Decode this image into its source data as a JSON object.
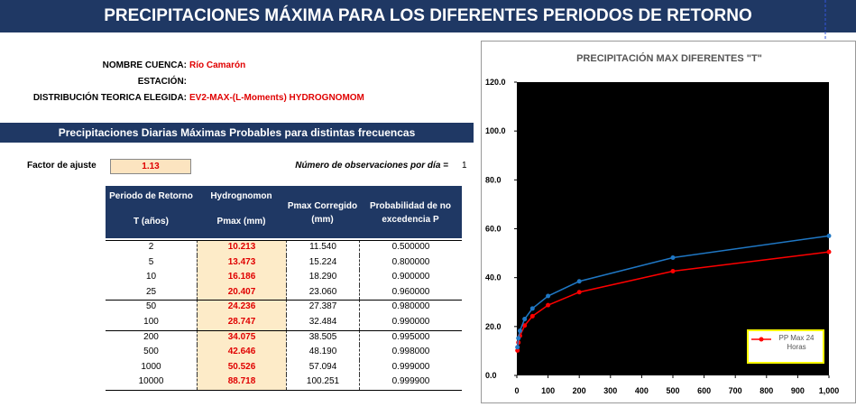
{
  "title": "PRECIPITACIONES MÁXIMA PARA LOS DIFERENTES PERIODOS DE RETORNO",
  "info": {
    "cuenca_label": "NOMBRE CUENCA:",
    "cuenca_value": "Río Camarón",
    "estacion_label": "ESTACIÓN:",
    "distribucion_label": "DISTRIBUCIÓN TEORICA ELEGIDA:",
    "distribucion_value": "EV2-MAX-(L-Moments) HYDROGNOMOM"
  },
  "section_title": "Precipitaciones Diarias Máximas Probables para distintas frecuencas",
  "factor": {
    "label": "Factor de ajuste",
    "value": "1.13"
  },
  "observaciones": {
    "label": "Número de observaciones por día =",
    "value": "1"
  },
  "table": {
    "columns": [
      [
        "Periodo de Retorno",
        "T (años)"
      ],
      [
        "Hydrognomon",
        "Pmax (mm)"
      ],
      [
        "Pmax Corregido",
        "(mm)"
      ],
      [
        "Probabilidad de no",
        "excedencia P"
      ]
    ],
    "rows": [
      [
        "2",
        "10.213",
        "11.540",
        "0.500000"
      ],
      [
        "5",
        "13.473",
        "15.224",
        "0.800000"
      ],
      [
        "10",
        "16.186",
        "18.290",
        "0.900000"
      ],
      [
        "25",
        "20.407",
        "23.060",
        "0.960000"
      ],
      [
        "50",
        "24.236",
        "27.387",
        "0.980000"
      ],
      [
        "100",
        "28.747",
        "32.484",
        "0.990000"
      ],
      [
        "200",
        "34.075",
        "38.505",
        "0.995000"
      ],
      [
        "500",
        "42.646",
        "48.190",
        "0.998000"
      ],
      [
        "1000",
        "50.526",
        "57.094",
        "0.999000"
      ],
      [
        "10000",
        "88.718",
        "100.251",
        "0.999900"
      ]
    ]
  },
  "chart_data": {
    "type": "line",
    "title": "PRECIPITACIÓN MAX DIFERENTES \"T\"",
    "x": [
      2,
      5,
      10,
      25,
      50,
      100,
      200,
      500,
      1000
    ],
    "series": [
      {
        "name": "PP Max 24 Horas",
        "color": "#ff0000",
        "values": [
          10.213,
          13.473,
          16.186,
          20.407,
          24.236,
          28.747,
          34.075,
          42.646,
          50.526
        ]
      },
      {
        "color": "#1f77c4",
        "values": [
          11.54,
          15.224,
          18.29,
          23.06,
          27.387,
          32.484,
          38.505,
          48.19,
          57.094
        ]
      }
    ],
    "xlim": [
      0,
      1000
    ],
    "xticks": [
      0,
      100,
      200,
      300,
      400,
      500,
      600,
      700,
      800,
      900,
      {
        "value": 1000,
        "label": "1,000"
      }
    ],
    "ylim": [
      0,
      120
    ],
    "yticks": [
      {
        "value": 0,
        "label": "0.0"
      },
      {
        "value": 20,
        "label": "20.0"
      },
      {
        "value": 40,
        "label": "40.0"
      },
      {
        "value": 60,
        "label": "60.0"
      },
      {
        "value": 80,
        "label": "80.0"
      },
      {
        "value": 100,
        "label": "100.0"
      },
      {
        "value": 120,
        "label": "120.0"
      }
    ],
    "legend": "lower right"
  }
}
